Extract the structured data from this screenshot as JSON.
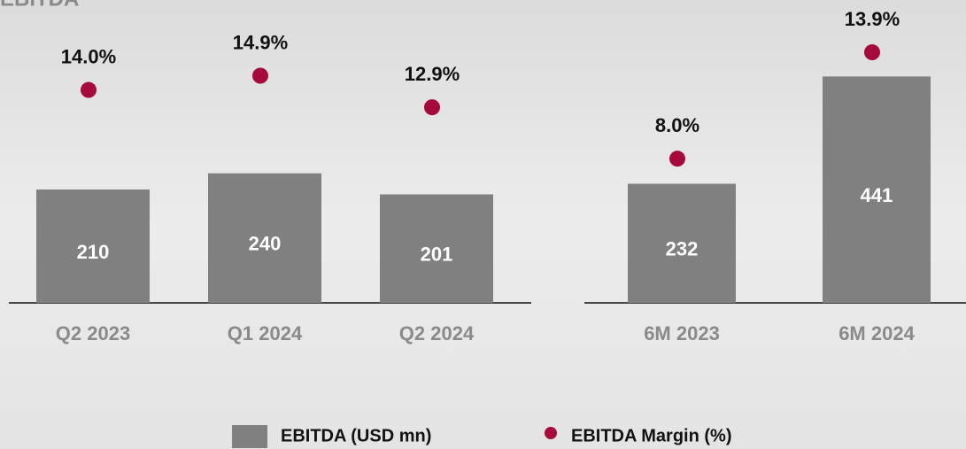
{
  "chart_data": [
    {
      "type": "bar",
      "title": "EBITDA",
      "categories": [
        "Q2 2023",
        "Q1 2024",
        "Q2 2024"
      ],
      "ylim": [
        0,
        561
      ],
      "y2lim": [
        0.5,
        19.7
      ],
      "series": [
        {
          "name": "EBITDA (USD mn)",
          "color": "#808080",
          "values": [
            210,
            240,
            201
          ]
        },
        {
          "name": "EBITDA Margin (%)",
          "color": "#a50a3a",
          "axis": "y2",
          "values": [
            14.0,
            14.9,
            12.9
          ],
          "value_labels": [
            "14.0%",
            "14.9%",
            "12.9%"
          ]
        }
      ]
    },
    {
      "type": "bar",
      "categories": [
        "6M 2023",
        "6M 2024"
      ],
      "ylim": [
        0,
        590
      ],
      "y2lim": [
        0,
        16.8
      ],
      "series": [
        {
          "color": "#808080",
          "values": [
            232,
            441
          ]
        },
        {
          "color": "#a50a3a",
          "axis": "y2",
          "values": [
            8.0,
            13.9
          ],
          "value_labels": [
            "8.0%",
            "13.9%"
          ]
        }
      ]
    }
  ]
}
